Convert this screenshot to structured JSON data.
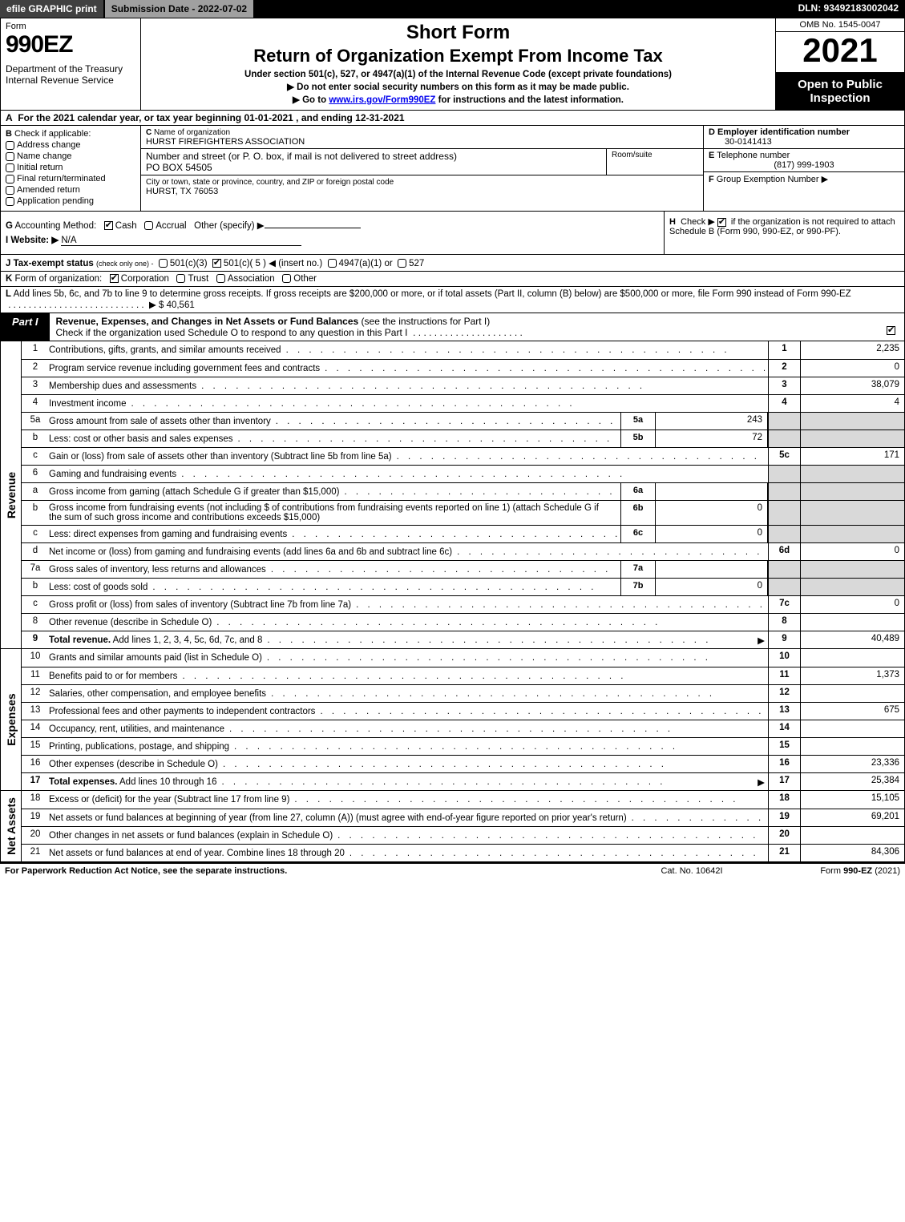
{
  "topbar": {
    "efile": "efile GRAPHIC print",
    "submission": "Submission Date - 2022-07-02",
    "dln": "DLN: 93492183002042"
  },
  "header": {
    "form_word": "Form",
    "form_num": "990EZ",
    "dept": "Department of the Treasury\nInternal Revenue Service",
    "short": "Short Form",
    "title": "Return of Organization Exempt From Income Tax",
    "sub1": "Under section 501(c), 527, or 4947(a)(1) of the Internal Revenue Code (except private foundations)",
    "sub2": "▶ Do not enter social security numbers on this form as it may be made public.",
    "sub3_pre": "▶ Go to ",
    "sub3_link": "www.irs.gov/Form990EZ",
    "sub3_post": " for instructions and the latest information.",
    "omb": "OMB No. 1545-0047",
    "year": "2021",
    "open": "Open to Public Inspection"
  },
  "rowA": {
    "label": "A",
    "text": "For the 2021 calendar year, or tax year beginning 01-01-2021 , and ending 12-31-2021"
  },
  "colB": {
    "label": "B",
    "caption": "Check if applicable:",
    "opts": [
      "Address change",
      "Name change",
      "Initial return",
      "Final return/terminated",
      "Amended return",
      "Application pending"
    ]
  },
  "colC": {
    "c_label": "C",
    "c_caption": "Name of organization",
    "org": "HURST FIREFIGHTERS ASSOCIATION",
    "addr_caption": "Number and street (or P. O. box, if mail is not delivered to street address)",
    "addr": "PO BOX 54505",
    "room_caption": "Room/suite",
    "city_caption": "City or town, state or province, country, and ZIP or foreign postal code",
    "city": "HURST, TX  76053"
  },
  "colDEF": {
    "d_label": "D",
    "d_caption": "Employer identification number",
    "ein": "30-0141413",
    "e_label": "E",
    "e_caption": "Telephone number",
    "phone": "(817) 999-1903",
    "f_label": "F",
    "f_caption": "Group Exemption Number",
    "f_arrow": "▶"
  },
  "rowG": {
    "g_label": "G",
    "g_text": "Accounting Method:",
    "cash": "Cash",
    "accrual": "Accrual",
    "other": "Other (specify) ▶",
    "i_label": "I",
    "i_text": "Website: ▶",
    "i_val": "N/A",
    "h_label": "H",
    "h_text": "Check ▶",
    "h_rest": "if the organization is not required to attach Schedule B (Form 990, 990-EZ, or 990-PF)."
  },
  "rowJ": {
    "j_label": "J",
    "j_text": "Tax-exempt status",
    "j_sm": "(check only one) -",
    "opt1": "501(c)(3)",
    "opt2": "501(c)( 5 ) ◀ (insert no.)",
    "opt3": "4947(a)(1) or",
    "opt4": "527"
  },
  "rowK": {
    "k_label": "K",
    "k_text": "Form of organization:",
    "opts": [
      "Corporation",
      "Trust",
      "Association",
      "Other"
    ]
  },
  "rowL": {
    "l_label": "L",
    "l_text": "Add lines 5b, 6c, and 7b to line 9 to determine gross receipts. If gross receipts are $200,000 or more, or if total assets (Part II, column (B) below) are $500,000 or more, file Form 990 instead of Form 990-EZ",
    "l_amount": "▶ $ 40,561"
  },
  "part1": {
    "tab": "Part I",
    "title_bold": "Revenue, Expenses, and Changes in Net Assets or Fund Balances",
    "title_rest": " (see the instructions for Part I)",
    "check_line": "Check if the organization used Schedule O to respond to any question in this Part I"
  },
  "revenue": {
    "l1": {
      "n": "1",
      "d": "Contributions, gifts, grants, and similar amounts received",
      "rn": "1",
      "rv": "2,235"
    },
    "l2": {
      "n": "2",
      "d": "Program service revenue including government fees and contracts",
      "rn": "2",
      "rv": "0"
    },
    "l3": {
      "n": "3",
      "d": "Membership dues and assessments",
      "rn": "3",
      "rv": "38,079"
    },
    "l4": {
      "n": "4",
      "d": "Investment income",
      "rn": "4",
      "rv": "4"
    },
    "l5a": {
      "n": "5a",
      "d": "Gross amount from sale of assets other than inventory",
      "sb": "5a",
      "sv": "243"
    },
    "l5b": {
      "n": "b",
      "d": "Less: cost or other basis and sales expenses",
      "sb": "5b",
      "sv": "72"
    },
    "l5c": {
      "n": "c",
      "d": "Gain or (loss) from sale of assets other than inventory (Subtract line 5b from line 5a)",
      "rn": "5c",
      "rv": "171"
    },
    "l6": {
      "n": "6",
      "d": "Gaming and fundraising events"
    },
    "l6a": {
      "n": "a",
      "d": "Gross income from gaming (attach Schedule G if greater than $15,000)",
      "sb": "6a",
      "sv": ""
    },
    "l6b": {
      "n": "b",
      "d": "Gross income from fundraising events (not including $                    of contributions from fundraising events reported on line 1) (attach Schedule G if the sum of such gross income and contributions exceeds $15,000)",
      "sb": "6b",
      "sv": "0"
    },
    "l6c": {
      "n": "c",
      "d": "Less: direct expenses from gaming and fundraising events",
      "sb": "6c",
      "sv": "0"
    },
    "l6d": {
      "n": "d",
      "d": "Net income or (loss) from gaming and fundraising events (add lines 6a and 6b and subtract line 6c)",
      "rn": "6d",
      "rv": "0"
    },
    "l7a": {
      "n": "7a",
      "d": "Gross sales of inventory, less returns and allowances",
      "sb": "7a",
      "sv": ""
    },
    "l7b": {
      "n": "b",
      "d": "Less: cost of goods sold",
      "sb": "7b",
      "sv": "0"
    },
    "l7c": {
      "n": "c",
      "d": "Gross profit or (loss) from sales of inventory (Subtract line 7b from line 7a)",
      "rn": "7c",
      "rv": "0"
    },
    "l8": {
      "n": "8",
      "d": "Other revenue (describe in Schedule O)",
      "rn": "8",
      "rv": ""
    },
    "l9": {
      "n": "9",
      "d": "Total revenue. Add lines 1, 2, 3, 4, 5c, 6d, 7c, and 8",
      "rn": "9",
      "rv": "40,489",
      "bold": true,
      "arrow": true
    }
  },
  "expenses": {
    "l10": {
      "n": "10",
      "d": "Grants and similar amounts paid (list in Schedule O)",
      "rn": "10",
      "rv": ""
    },
    "l11": {
      "n": "11",
      "d": "Benefits paid to or for members",
      "rn": "11",
      "rv": "1,373"
    },
    "l12": {
      "n": "12",
      "d": "Salaries, other compensation, and employee benefits",
      "rn": "12",
      "rv": ""
    },
    "l13": {
      "n": "13",
      "d": "Professional fees and other payments to independent contractors",
      "rn": "13",
      "rv": "675"
    },
    "l14": {
      "n": "14",
      "d": "Occupancy, rent, utilities, and maintenance",
      "rn": "14",
      "rv": ""
    },
    "l15": {
      "n": "15",
      "d": "Printing, publications, postage, and shipping",
      "rn": "15",
      "rv": ""
    },
    "l16": {
      "n": "16",
      "d": "Other expenses (describe in Schedule O)",
      "rn": "16",
      "rv": "23,336"
    },
    "l17": {
      "n": "17",
      "d": "Total expenses. Add lines 10 through 16",
      "rn": "17",
      "rv": "25,384",
      "bold": true,
      "arrow": true
    }
  },
  "netassets": {
    "l18": {
      "n": "18",
      "d": "Excess or (deficit) for the year (Subtract line 17 from line 9)",
      "rn": "18",
      "rv": "15,105"
    },
    "l19": {
      "n": "19",
      "d": "Net assets or fund balances at beginning of year (from line 27, column (A)) (must agree with end-of-year figure reported on prior year's return)",
      "rn": "19",
      "rv": "69,201"
    },
    "l20": {
      "n": "20",
      "d": "Other changes in net assets or fund balances (explain in Schedule O)",
      "rn": "20",
      "rv": ""
    },
    "l21": {
      "n": "21",
      "d": "Net assets or fund balances at end of year. Combine lines 18 through 20",
      "rn": "21",
      "rv": "84,306"
    }
  },
  "side_labels": {
    "rev": "Revenue",
    "exp": "Expenses",
    "na": "Net Assets"
  },
  "footer": {
    "left": "For Paperwork Reduction Act Notice, see the separate instructions.",
    "mid": "Cat. No. 10642I",
    "right_pre": "Form ",
    "right_bold": "990-EZ",
    "right_post": " (2021)"
  },
  "dots": ".  .  .  .  .  .  .  .  .  .  .  .  .  .  .  .  .  .  .  .  .  .  .  .  .  .  .  .  .  .  .  .  .  .  .  .  .  .  ."
}
